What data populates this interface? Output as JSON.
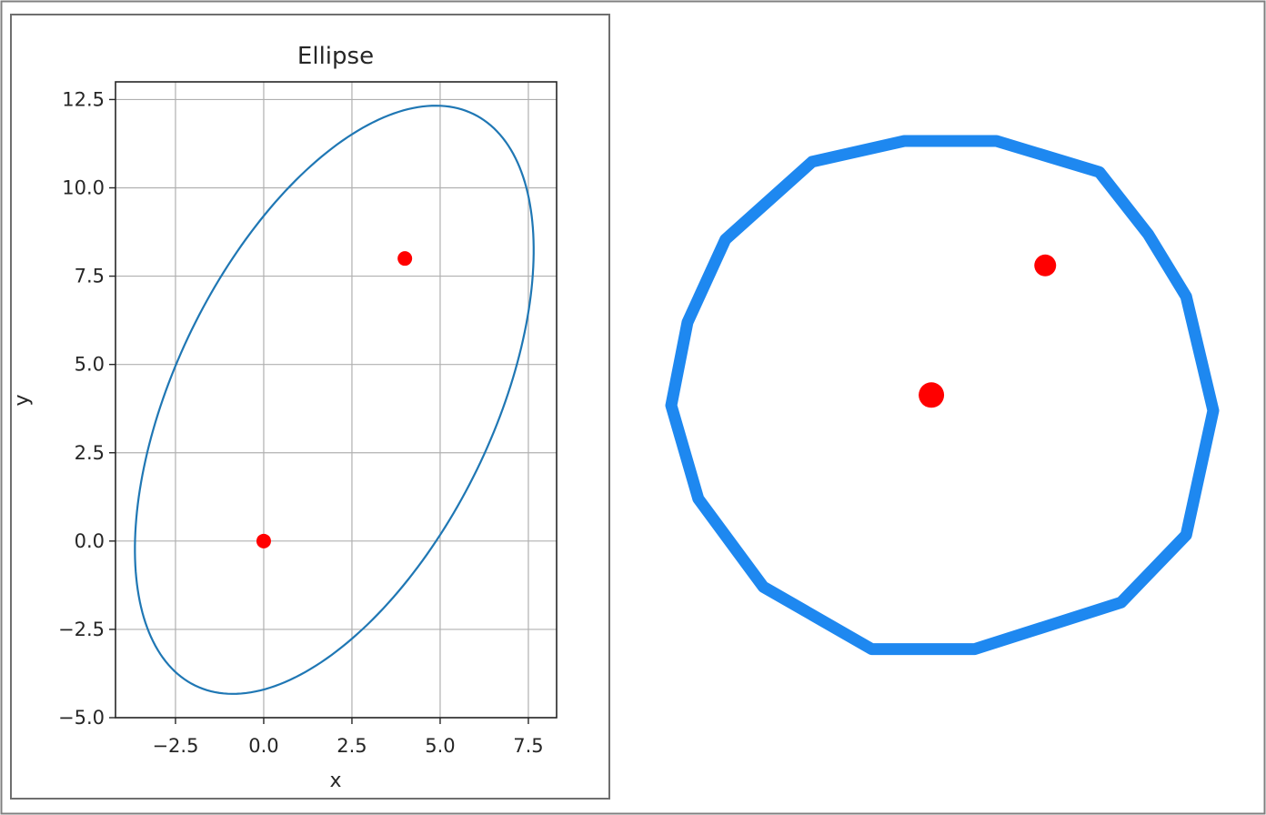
{
  "chart_data": [
    {
      "type": "line",
      "title": "Ellipse",
      "xlabel": "x",
      "ylabel": "y",
      "xlim": [
        -4.2,
        8.3
      ],
      "ylim": [
        -5.0,
        13.0
      ],
      "xticks": [
        -2.5,
        0.0,
        2.5,
        5.0,
        7.5
      ],
      "yticks": [
        -5.0,
        -2.5,
        0.0,
        2.5,
        5.0,
        7.5,
        10.0,
        12.5
      ],
      "xtick_labels": [
        "−2.5",
        "0.0",
        "2.5",
        "5.0",
        "7.5"
      ],
      "ytick_labels": [
        "−5.0",
        "−2.5",
        "0.0",
        "2.5",
        "5.0",
        "7.5",
        "10.0",
        "12.5"
      ],
      "grid": true,
      "line_color": "#1f77b4",
      "point_color": "#ff0000",
      "series": [
        {
          "kind": "ellipse",
          "center": [
            2.0,
            4.0
          ],
          "semi_axes": [
            9.0,
            4.5
          ],
          "rotation_deg": 64
        }
      ],
      "points": [
        {
          "x": 0.0,
          "y": 0.0
        },
        {
          "x": 4.0,
          "y": 8.0
        }
      ]
    },
    {
      "type": "scatter",
      "title": "",
      "xlabel": "",
      "ylabel": "",
      "description_free": true,
      "xlim": [
        0,
        1
      ],
      "ylim": [
        0,
        1
      ],
      "line_color": "#1e88f0",
      "point_color": "#ff0000",
      "outline": [
        [
          0.26,
          0.04
        ],
        [
          0.43,
          0.0
        ],
        [
          0.6,
          0.0
        ],
        [
          0.79,
          0.06
        ],
        [
          0.88,
          0.18
        ],
        [
          0.95,
          0.3
        ],
        [
          1.0,
          0.52
        ],
        [
          0.95,
          0.76
        ],
        [
          0.83,
          0.89
        ],
        [
          0.56,
          0.98
        ],
        [
          0.37,
          0.98
        ],
        [
          0.17,
          0.86
        ],
        [
          0.05,
          0.69
        ],
        [
          0.0,
          0.51
        ],
        [
          0.03,
          0.35
        ],
        [
          0.1,
          0.19
        ],
        [
          0.26,
          0.04
        ]
      ],
      "points": [
        {
          "x": 0.48,
          "y": 0.49
        },
        {
          "x": 0.69,
          "y": 0.24
        }
      ]
    }
  ]
}
